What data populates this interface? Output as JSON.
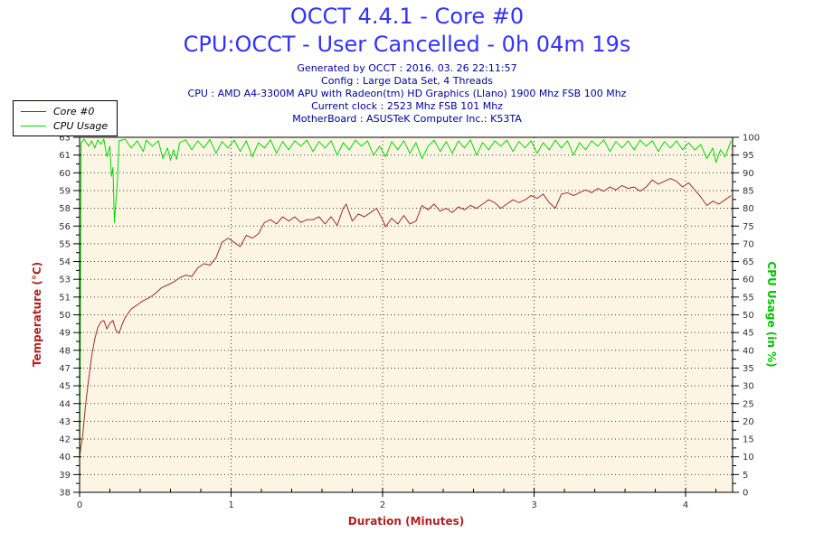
{
  "title": "OCCT 4.4.1 - Core #0",
  "subtitle": "CPU:OCCT - User Cancelled - 0h 04m 19s",
  "meta_lines": [
    "Generated by OCCT : 2016. 03. 26 22:11:57",
    "Config : Large Data Set, 4 Threads",
    "CPU : AMD A4-3300M APU with Radeon(tm) HD Graphics (Llano) 1900 Mhz FSB 100 Mhz",
    "Current clock : 2523 Mhz FSB 101 Mhz",
    "MotherBoard : ASUSTeK Computer Inc.: K53TA"
  ],
  "colors": {
    "title": "#3333FF",
    "meta": "#0000A0",
    "plot_bg": "#FCF5E4",
    "plot_border": "#000000",
    "grid": "#404040",
    "tick_label": "#333333",
    "temp_series": "#A02C2C",
    "cpu_series": "#00DC00",
    "temp_axis_label": "#B22222",
    "cpu_axis_label": "#00C400",
    "x_axis_label": "#B22222"
  },
  "legend": {
    "items": [
      {
        "label": "Core #0"
      },
      {
        "label": "CPU Usage"
      }
    ]
  },
  "chart_data": {
    "type": "line",
    "xlabel": "Duration (Minutes)",
    "ylabel_left": "Temperature (°C)",
    "ylabel_right": "CPU Usage (in %)",
    "xlim": [
      0,
      4.31
    ],
    "x_ticks": [
      0,
      1,
      2,
      3,
      4
    ],
    "x_tick_labels": [
      "0",
      "1",
      "2",
      "3",
      "4"
    ],
    "x_minor_step": 0.2,
    "grid": "dotted, horizontal every 5% of right axis, vertical every 1 minute",
    "legend_position": "top-left",
    "left_axis": {
      "range": [
        38,
        63
      ],
      "labels_top_to_bottom": [
        "63",
        "61",
        "60",
        "59",
        "58",
        "56",
        "55",
        "54",
        "53",
        "51",
        "50",
        "49",
        "48",
        "47",
        "45",
        "44",
        "43",
        "42",
        "40",
        "39",
        "38"
      ]
    },
    "right_axis": {
      "range": [
        0,
        100
      ],
      "labels_top_to_bottom": [
        "100",
        "95",
        "90",
        "85",
        "80",
        "75",
        "70",
        "65",
        "60",
        "55",
        "50",
        "45",
        "40",
        "35",
        "30",
        "25",
        "20",
        "15",
        "10",
        "5",
        "0"
      ]
    },
    "series": [
      {
        "name": "Core #0",
        "axis": "left",
        "unit": "°C",
        "points": [
          [
            0.0,
            40.5
          ],
          [
            0.02,
            42.0
          ],
          [
            0.04,
            44.2
          ],
          [
            0.06,
            46.0
          ],
          [
            0.08,
            47.6
          ],
          [
            0.1,
            48.8
          ],
          [
            0.12,
            49.6
          ],
          [
            0.14,
            50.0
          ],
          [
            0.16,
            50.1
          ],
          [
            0.18,
            49.5
          ],
          [
            0.2,
            49.9
          ],
          [
            0.22,
            50.1
          ],
          [
            0.24,
            49.4
          ],
          [
            0.26,
            49.2
          ],
          [
            0.28,
            49.8
          ],
          [
            0.3,
            50.3
          ],
          [
            0.34,
            50.9
          ],
          [
            0.38,
            51.2
          ],
          [
            0.42,
            51.5
          ],
          [
            0.46,
            51.7
          ],
          [
            0.5,
            52.0
          ],
          [
            0.54,
            52.4
          ],
          [
            0.58,
            52.6
          ],
          [
            0.62,
            52.8
          ],
          [
            0.66,
            53.1
          ],
          [
            0.7,
            53.3
          ],
          [
            0.74,
            53.2
          ],
          [
            0.78,
            53.8
          ],
          [
            0.82,
            54.1
          ],
          [
            0.86,
            54.0
          ],
          [
            0.9,
            54.5
          ],
          [
            0.94,
            55.6
          ],
          [
            0.98,
            55.9
          ],
          [
            1.02,
            55.6
          ],
          [
            1.06,
            55.3
          ],
          [
            1.1,
            56.1
          ],
          [
            1.14,
            55.9
          ],
          [
            1.18,
            56.2
          ],
          [
            1.22,
            57.0
          ],
          [
            1.26,
            57.2
          ],
          [
            1.3,
            56.9
          ],
          [
            1.34,
            57.4
          ],
          [
            1.38,
            57.1
          ],
          [
            1.42,
            57.4
          ],
          [
            1.46,
            57.0
          ],
          [
            1.5,
            57.2
          ],
          [
            1.54,
            57.2
          ],
          [
            1.58,
            57.4
          ],
          [
            1.62,
            56.9
          ],
          [
            1.66,
            57.4
          ],
          [
            1.7,
            56.8
          ],
          [
            1.74,
            58.0
          ],
          [
            1.76,
            58.3
          ],
          [
            1.8,
            57.1
          ],
          [
            1.84,
            57.6
          ],
          [
            1.88,
            57.4
          ],
          [
            1.92,
            57.7
          ],
          [
            1.96,
            58.0
          ],
          [
            2.0,
            57.2
          ],
          [
            2.02,
            56.7
          ],
          [
            2.06,
            57.3
          ],
          [
            2.1,
            56.9
          ],
          [
            2.14,
            57.5
          ],
          [
            2.18,
            56.9
          ],
          [
            2.22,
            57.1
          ],
          [
            2.26,
            58.2
          ],
          [
            2.3,
            57.9
          ],
          [
            2.34,
            58.3
          ],
          [
            2.38,
            57.8
          ],
          [
            2.42,
            58.0
          ],
          [
            2.46,
            57.7
          ],
          [
            2.5,
            58.1
          ],
          [
            2.54,
            57.9
          ],
          [
            2.58,
            58.2
          ],
          [
            2.62,
            58.0
          ],
          [
            2.66,
            58.3
          ],
          [
            2.7,
            58.6
          ],
          [
            2.74,
            58.4
          ],
          [
            2.78,
            58.0
          ],
          [
            2.82,
            58.3
          ],
          [
            2.86,
            58.6
          ],
          [
            2.9,
            58.4
          ],
          [
            2.94,
            58.6
          ],
          [
            2.98,
            58.9
          ],
          [
            3.02,
            58.7
          ],
          [
            3.06,
            59.0
          ],
          [
            3.1,
            58.4
          ],
          [
            3.14,
            58.0
          ],
          [
            3.18,
            59.0
          ],
          [
            3.22,
            59.1
          ],
          [
            3.26,
            58.9
          ],
          [
            3.3,
            59.1
          ],
          [
            3.34,
            59.3
          ],
          [
            3.38,
            59.1
          ],
          [
            3.42,
            59.4
          ],
          [
            3.46,
            59.2
          ],
          [
            3.5,
            59.5
          ],
          [
            3.54,
            59.3
          ],
          [
            3.58,
            59.6
          ],
          [
            3.62,
            59.4
          ],
          [
            3.66,
            59.5
          ],
          [
            3.7,
            59.2
          ],
          [
            3.74,
            59.5
          ],
          [
            3.78,
            60.0
          ],
          [
            3.82,
            59.7
          ],
          [
            3.86,
            59.9
          ],
          [
            3.9,
            60.1
          ],
          [
            3.94,
            59.9
          ],
          [
            3.98,
            59.5
          ],
          [
            4.02,
            59.8
          ],
          [
            4.06,
            59.3
          ],
          [
            4.1,
            58.8
          ],
          [
            4.14,
            58.2
          ],
          [
            4.18,
            58.5
          ],
          [
            4.22,
            58.3
          ],
          [
            4.26,
            58.6
          ],
          [
            4.3,
            58.9
          ]
        ]
      },
      {
        "name": "CPU Usage",
        "axis": "right",
        "unit": "%",
        "points": [
          [
            0.0,
            0
          ],
          [
            0.01,
            98.5
          ],
          [
            0.03,
            99.5
          ],
          [
            0.06,
            97.5
          ],
          [
            0.08,
            99.0
          ],
          [
            0.1,
            97.0
          ],
          [
            0.12,
            99.3
          ],
          [
            0.14,
            98.0
          ],
          [
            0.16,
            99.5
          ],
          [
            0.18,
            94.5
          ],
          [
            0.2,
            97.5
          ],
          [
            0.21,
            89.0
          ],
          [
            0.22,
            91.5
          ],
          [
            0.23,
            76.0
          ],
          [
            0.25,
            88.0
          ],
          [
            0.26,
            99.0
          ],
          [
            0.3,
            99.5
          ],
          [
            0.34,
            97.0
          ],
          [
            0.38,
            99.0
          ],
          [
            0.42,
            96.0
          ],
          [
            0.44,
            99.2
          ],
          [
            0.48,
            97.5
          ],
          [
            0.52,
            99.0
          ],
          [
            0.55,
            94.0
          ],
          [
            0.58,
            97.0
          ],
          [
            0.6,
            93.5
          ],
          [
            0.62,
            96.5
          ],
          [
            0.64,
            93.8
          ],
          [
            0.66,
            98.5
          ],
          [
            0.7,
            99.3
          ],
          [
            0.74,
            96.5
          ],
          [
            0.78,
            99.0
          ],
          [
            0.82,
            97.0
          ],
          [
            0.86,
            99.4
          ],
          [
            0.9,
            95.5
          ],
          [
            0.94,
            98.8
          ],
          [
            0.98,
            97.0
          ],
          [
            1.02,
            99.2
          ],
          [
            1.06,
            96.0
          ],
          [
            1.1,
            99.0
          ],
          [
            1.14,
            94.5
          ],
          [
            1.18,
            98.5
          ],
          [
            1.22,
            97.0
          ],
          [
            1.26,
            99.3
          ],
          [
            1.3,
            95.5
          ],
          [
            1.34,
            98.8
          ],
          [
            1.38,
            96.5
          ],
          [
            1.42,
            99.0
          ],
          [
            1.46,
            97.5
          ],
          [
            1.5,
            99.2
          ],
          [
            1.54,
            96.0
          ],
          [
            1.58,
            98.8
          ],
          [
            1.62,
            97.0
          ],
          [
            1.66,
            99.0
          ],
          [
            1.7,
            95.0
          ],
          [
            1.74,
            98.5
          ],
          [
            1.78,
            96.5
          ],
          [
            1.82,
            99.2
          ],
          [
            1.86,
            97.5
          ],
          [
            1.9,
            99.0
          ],
          [
            1.94,
            95.0
          ],
          [
            1.98,
            97.5
          ],
          [
            2.02,
            94.5
          ],
          [
            2.06,
            98.8
          ],
          [
            2.1,
            96.5
          ],
          [
            2.14,
            99.0
          ],
          [
            2.18,
            95.5
          ],
          [
            2.22,
            98.5
          ],
          [
            2.26,
            94.0
          ],
          [
            2.3,
            97.5
          ],
          [
            2.34,
            99.2
          ],
          [
            2.38,
            96.0
          ],
          [
            2.42,
            98.8
          ],
          [
            2.46,
            95.5
          ],
          [
            2.5,
            99.0
          ],
          [
            2.54,
            97.0
          ],
          [
            2.58,
            99.3
          ],
          [
            2.62,
            95.0
          ],
          [
            2.66,
            98.5
          ],
          [
            2.7,
            96.5
          ],
          [
            2.74,
            99.0
          ],
          [
            2.78,
            97.5
          ],
          [
            2.82,
            99.2
          ],
          [
            2.86,
            96.0
          ],
          [
            2.9,
            98.8
          ],
          [
            2.94,
            97.0
          ],
          [
            2.98,
            99.0
          ],
          [
            3.02,
            95.5
          ],
          [
            3.06,
            98.5
          ],
          [
            3.1,
            96.5
          ],
          [
            3.14,
            99.2
          ],
          [
            3.18,
            97.0
          ],
          [
            3.22,
            99.0
          ],
          [
            3.26,
            95.0
          ],
          [
            3.3,
            98.5
          ],
          [
            3.34,
            96.5
          ],
          [
            3.38,
            99.0
          ],
          [
            3.42,
            97.5
          ],
          [
            3.46,
            99.3
          ],
          [
            3.5,
            96.0
          ],
          [
            3.54,
            98.8
          ],
          [
            3.58,
            97.0
          ],
          [
            3.62,
            99.0
          ],
          [
            3.66,
            96.5
          ],
          [
            3.7,
            99.2
          ],
          [
            3.74,
            97.5
          ],
          [
            3.78,
            99.0
          ],
          [
            3.82,
            96.0
          ],
          [
            3.86,
            98.8
          ],
          [
            3.9,
            97.0
          ],
          [
            3.94,
            99.0
          ],
          [
            3.98,
            96.5
          ],
          [
            4.02,
            98.5
          ],
          [
            4.06,
            96.4
          ],
          [
            4.1,
            98.0
          ],
          [
            4.14,
            94.0
          ],
          [
            4.18,
            97.0
          ],
          [
            4.2,
            92.9
          ],
          [
            4.23,
            96.5
          ],
          [
            4.26,
            94.5
          ],
          [
            4.3,
            99.0
          ]
        ]
      }
    ]
  }
}
